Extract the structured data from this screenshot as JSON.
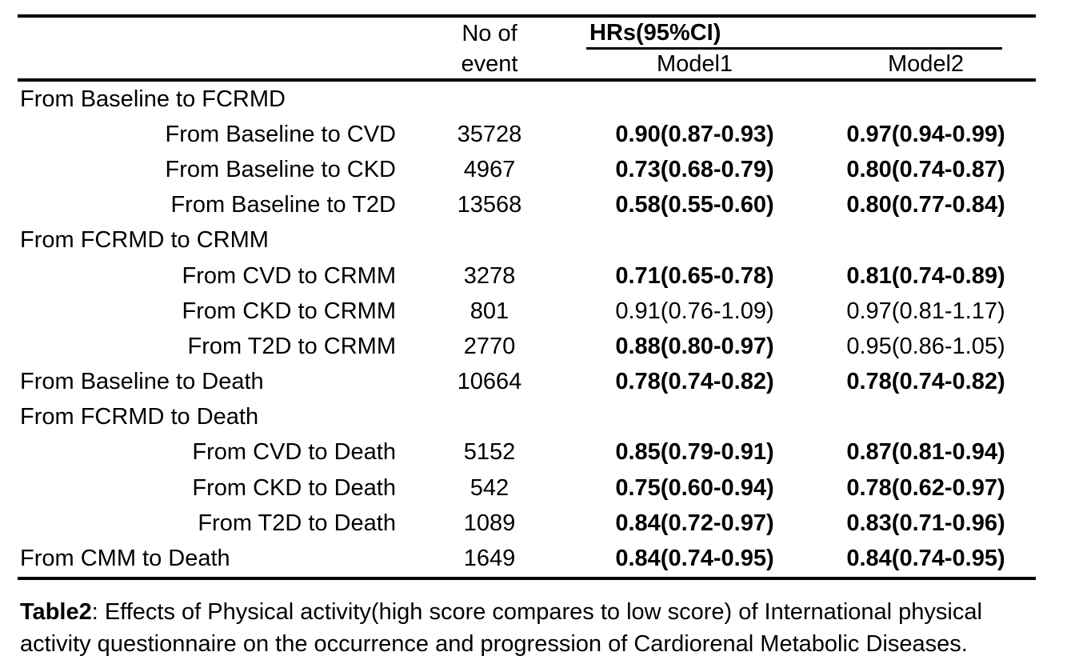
{
  "table": {
    "header": {
      "no_of_line1": "No of",
      "no_of_line2": "event",
      "hr_group": "HRs(95%CI)",
      "model1": "Model1",
      "model2": "Model2"
    },
    "rows": [
      {
        "label": "From Baseline to FCRMD",
        "indent": false,
        "event": "",
        "model1": "",
        "model2": "",
        "model1_bold": false,
        "model2_bold": false
      },
      {
        "label": "From Baseline to CVD",
        "indent": true,
        "event": "35728",
        "model1": "0.90(0.87-0.93)",
        "model2": "0.97(0.94-0.99)",
        "model1_bold": true,
        "model2_bold": true
      },
      {
        "label": "From Baseline to CKD",
        "indent": true,
        "event": "4967",
        "model1": "0.73(0.68-0.79)",
        "model2": "0.80(0.74-0.87)",
        "model1_bold": true,
        "model2_bold": true
      },
      {
        "label": "From Baseline to T2D",
        "indent": true,
        "event": "13568",
        "model1": "0.58(0.55-0.60)",
        "model2": "0.80(0.77-0.84)",
        "model1_bold": true,
        "model2_bold": true
      },
      {
        "label": "From FCRMD to CRMM",
        "indent": false,
        "event": "",
        "model1": "",
        "model2": "",
        "model1_bold": false,
        "model2_bold": false
      },
      {
        "label": "From CVD to CRMM",
        "indent": true,
        "event": "3278",
        "model1": "0.71(0.65-0.78)",
        "model2": "0.81(0.74-0.89)",
        "model1_bold": true,
        "model2_bold": true
      },
      {
        "label": "From CKD to CRMM",
        "indent": true,
        "event": "801",
        "model1": "0.91(0.76-1.09)",
        "model2": "0.97(0.81-1.17)",
        "model1_bold": false,
        "model2_bold": false
      },
      {
        "label": "From T2D to CRMM",
        "indent": true,
        "event": "2770",
        "model1": "0.88(0.80-0.97)",
        "model2": "0.95(0.86-1.05)",
        "model1_bold": true,
        "model2_bold": false
      },
      {
        "label": "From Baseline to Death",
        "indent": false,
        "event": "10664",
        "model1": "0.78(0.74-0.82)",
        "model2": "0.78(0.74-0.82)",
        "model1_bold": true,
        "model2_bold": true
      },
      {
        "label": "From FCRMD to Death",
        "indent": false,
        "event": "",
        "model1": "",
        "model2": "",
        "model1_bold": false,
        "model2_bold": false
      },
      {
        "label": "From CVD to Death",
        "indent": true,
        "event": "5152",
        "model1": "0.85(0.79-0.91)",
        "model2": "0.87(0.81-0.94)",
        "model1_bold": true,
        "model2_bold": true
      },
      {
        "label": "From CKD to Death",
        "indent": true,
        "event": "542",
        "model1": "0.75(0.60-0.94)",
        "model2": "0.78(0.62-0.97)",
        "model1_bold": true,
        "model2_bold": true
      },
      {
        "label": "From T2D to Death",
        "indent": true,
        "event": "1089",
        "model1": "0.84(0.72-0.97)",
        "model2": "0.83(0.71-0.96)",
        "model1_bold": true,
        "model2_bold": true
      },
      {
        "label": "From CMM to Death",
        "indent": false,
        "event": "1649",
        "model1": "0.84(0.74-0.95)",
        "model2": "0.84(0.74-0.95)",
        "model1_bold": true,
        "model2_bold": true
      }
    ]
  },
  "caption": {
    "bold_label": "Table2",
    "line1_rest": ": Effects of Physical activity(high score compares to low score) of International physical",
    "line2": "activity questionnaire on the occurrence and progression of Cardiorenal Metabolic Diseases."
  },
  "colors": {
    "text": "#000000",
    "background": "#ffffff",
    "rule": "#000000"
  }
}
